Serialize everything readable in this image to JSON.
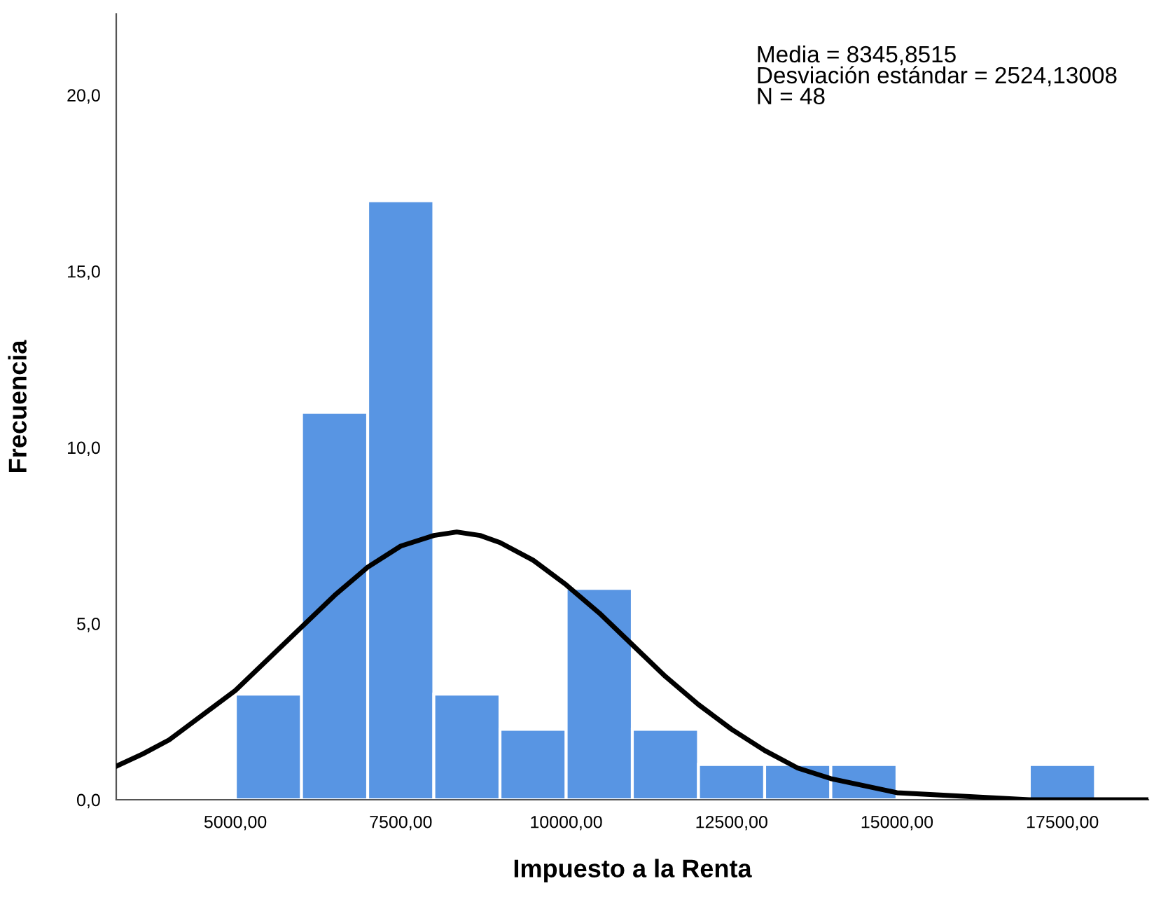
{
  "chart_data": {
    "type": "histogram",
    "xlabel": "Impuesto a la Renta",
    "ylabel": "Frecuencia",
    "bins": [
      5000,
      6000,
      7000,
      8000,
      9000,
      10000,
      11000,
      12000,
      13000,
      14000,
      15000,
      16000,
      17000,
      18000
    ],
    "values": [
      3,
      11,
      17,
      3,
      2,
      6,
      2,
      1,
      1,
      1,
      0,
      0,
      1
    ],
    "color": "#5895e3",
    "series": [
      {
        "type": "line",
        "color": "#000000",
        "x": [
          3200,
          3600,
          4000,
          4500,
          5000,
          5500,
          6000,
          6500,
          7000,
          7500,
          8000,
          8346,
          8700,
          9000,
          9500,
          10000,
          10500,
          11000,
          11500,
          12000,
          12500,
          13000,
          13500,
          14000,
          14500,
          15000,
          16000,
          17000,
          18800
        ],
        "values": [
          0.95,
          1.3,
          1.7,
          2.4,
          3.1,
          4.0,
          4.9,
          5.8,
          6.6,
          7.2,
          7.5,
          7.6,
          7.5,
          7.3,
          6.8,
          6.1,
          5.3,
          4.4,
          3.5,
          2.7,
          2.0,
          1.4,
          0.9,
          0.6,
          0.4,
          0.2,
          0.1,
          0.0,
          0.0
        ]
      }
    ],
    "xlim": [
      3200,
      18800
    ],
    "ylim": [
      0,
      22.3
    ],
    "xticks": [
      {
        "value": 5000,
        "label": "5000,00"
      },
      {
        "value": 7500,
        "label": "7500,00"
      },
      {
        "value": 10000,
        "label": "10000,00"
      },
      {
        "value": 12500,
        "label": "12500,00"
      },
      {
        "value": 15000,
        "label": "15000,00"
      },
      {
        "value": 17500,
        "label": "17500,00"
      }
    ],
    "yticks": [
      {
        "value": 0,
        "label": "0,0"
      },
      {
        "value": 5,
        "label": "5,0"
      },
      {
        "value": 10,
        "label": "10,0"
      },
      {
        "value": 15,
        "label": "15,0"
      },
      {
        "value": 20,
        "label": "20,0"
      }
    ],
    "annotations": [
      "Media = 8345,8515\nDesviación estándar = 2524,13008\nN = 48"
    ],
    "grid": false,
    "legend": false
  }
}
